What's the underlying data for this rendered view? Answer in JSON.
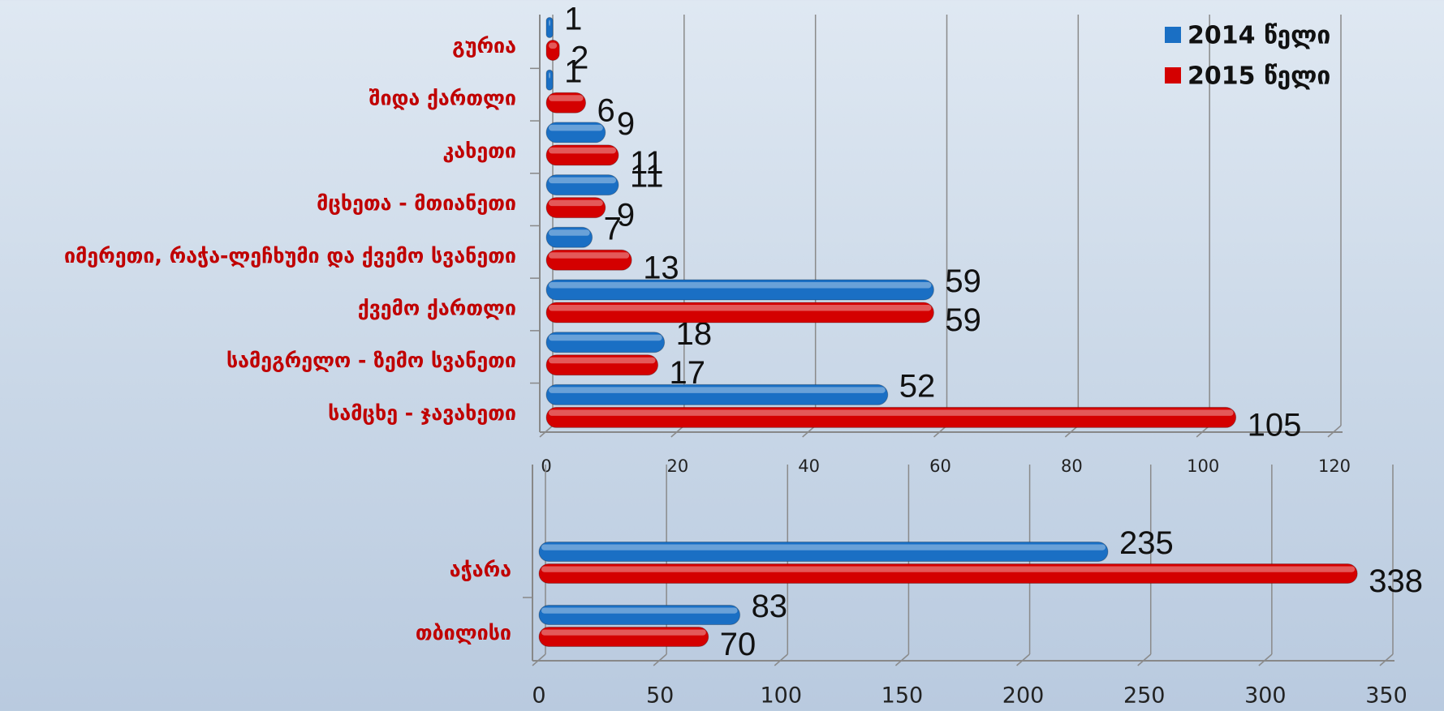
{
  "chart_data": [
    {
      "type": "bar",
      "orientation": "horizontal",
      "categories": [
        "გურია",
        "შიდა ქართლი",
        "კახეთი",
        "მცხეთა - მთიანეთი",
        "იმერეთი, რაჭა-ლეჩხუმი და ქვემო სვანეთი",
        "ქვემო ქართლი",
        "სამეგრელო - ზემო სვანეთი",
        "სამცხე - ჯავახეთი"
      ],
      "series": [
        {
          "name": "2014 წელი",
          "color": "#1a6fc4",
          "values": [
            1,
            1,
            9,
            11,
            7,
            59,
            18,
            52
          ]
        },
        {
          "name": "2015 წელი",
          "color": "#d40000",
          "values": [
            2,
            6,
            11,
            9,
            13,
            59,
            17,
            105
          ]
        }
      ],
      "xlim": [
        0,
        120
      ],
      "xticks": [
        0,
        20,
        40,
        60,
        80,
        100,
        120
      ],
      "grid": true,
      "legend": "top-right"
    },
    {
      "type": "bar",
      "orientation": "horizontal",
      "categories": [
        "აჭარა",
        "თბილისი"
      ],
      "series": [
        {
          "color": "#1a6fc4",
          "values": [
            235,
            83
          ]
        },
        {
          "color": "#d40000",
          "values": [
            338,
            70
          ]
        }
      ],
      "xlim": [
        0,
        350
      ],
      "xticks": [
        0,
        50,
        100,
        150,
        200,
        250,
        300,
        350
      ],
      "grid": true
    }
  ]
}
